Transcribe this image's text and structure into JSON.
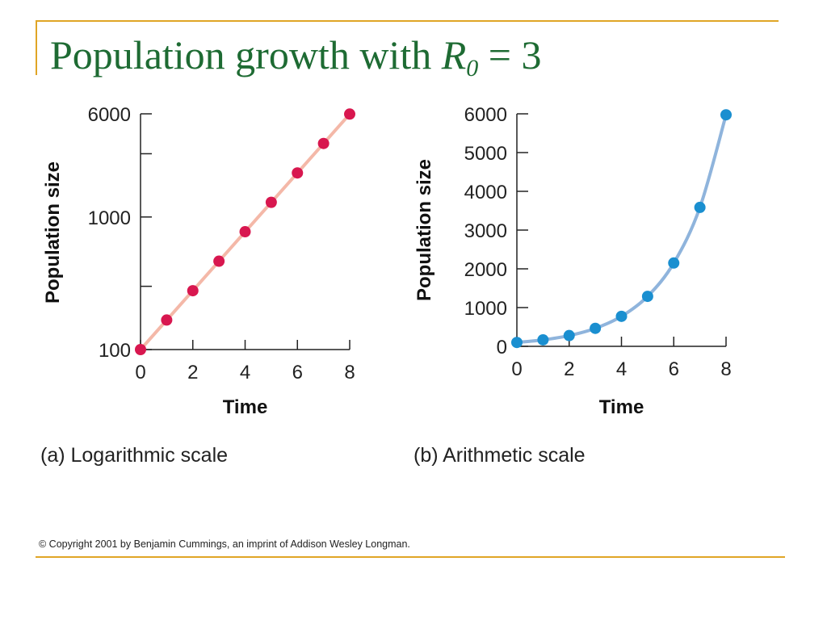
{
  "slide": {
    "title_prefix": "Population growth with ",
    "title_var": "R",
    "title_sub": "0",
    "title_suffix": " = 3",
    "copyright": "© Copyright 2001 by Benjamin Cummings, an imprint of Addison Wesley Longman.",
    "accent_color": "#e0a526",
    "title_color": "#1e6b33"
  },
  "chart_data": [
    {
      "type": "line",
      "caption": "(a) Logarithmic scale",
      "xlabel": "Time",
      "ylabel": "Population size",
      "yscale": "log",
      "xlim": [
        0,
        8
      ],
      "ylim": [
        100,
        6000
      ],
      "xticks": [
        "0",
        "2",
        "4",
        "6",
        "8"
      ],
      "yticks": [
        "6000",
        "1000",
        "100"
      ],
      "x": [
        0,
        1,
        2,
        3,
        4,
        5,
        6,
        7,
        8
      ],
      "series": [
        {
          "values": [
            100,
            167,
            278,
            464,
            774,
            1290,
            2150,
            3585,
            5975
          ],
          "point_color": "#d8174f",
          "line_color": "#f4b8a8"
        }
      ]
    },
    {
      "type": "line",
      "caption": "(b) Arithmetic scale",
      "xlabel": "Time",
      "ylabel": "Population size",
      "yscale": "linear",
      "xlim": [
        0,
        8
      ],
      "ylim": [
        0,
        6000
      ],
      "xticks": [
        "0",
        "2",
        "4",
        "6",
        "8"
      ],
      "yticks": [
        "6000",
        "5000",
        "4000",
        "3000",
        "2000",
        "1000",
        "0"
      ],
      "x": [
        0,
        1,
        2,
        3,
        4,
        5,
        6,
        7,
        8
      ],
      "series": [
        {
          "values": [
            100,
            167,
            278,
            464,
            774,
            1290,
            2150,
            3585,
            5975
          ],
          "point_color": "#1a8fd0",
          "line_color": "#8fb4dc"
        }
      ]
    }
  ]
}
